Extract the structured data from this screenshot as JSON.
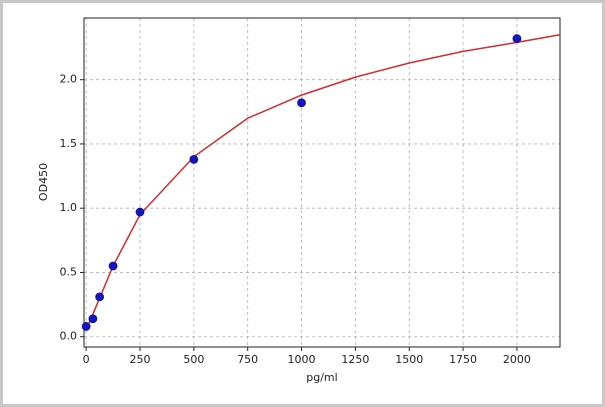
{
  "chart_data": {
    "type": "scatter",
    "x_label": "pg/ml",
    "y_label": "OD450",
    "xlim": [
      -10,
      2200
    ],
    "ylim": [
      -0.08,
      2.48
    ],
    "xticks": [
      0,
      250,
      500,
      750,
      1000,
      1250,
      1500,
      1750,
      2000
    ],
    "yticks": [
      {
        "value": 0,
        "label": "0.0"
      },
      {
        "value": 0.5,
        "label": "0.5"
      },
      {
        "value": 1,
        "label": "1.0"
      },
      {
        "value": 1.5,
        "label": "1.5"
      },
      {
        "value": 2,
        "label": "2.0"
      }
    ],
    "grid": true,
    "series": [
      {
        "style": "line",
        "color": "#d42a2a",
        "x": [
          0,
          50,
          100,
          125,
          250,
          500,
          750,
          1000,
          1250,
          1500,
          1750,
          2000,
          2200
        ],
        "values": [
          0.05,
          0.25,
          0.45,
          0.55,
          0.95,
          1.4,
          1.7,
          1.88,
          2.02,
          2.13,
          2.22,
          2.29,
          2.35
        ]
      },
      {
        "style": "marker",
        "color": "#1414c8",
        "x": [
          0,
          31.25,
          62.5,
          125,
          250,
          500,
          1000,
          2000
        ],
        "values": [
          0.08,
          0.14,
          0.31,
          0.55,
          0.97,
          1.38,
          1.82,
          2.32
        ]
      }
    ]
  }
}
